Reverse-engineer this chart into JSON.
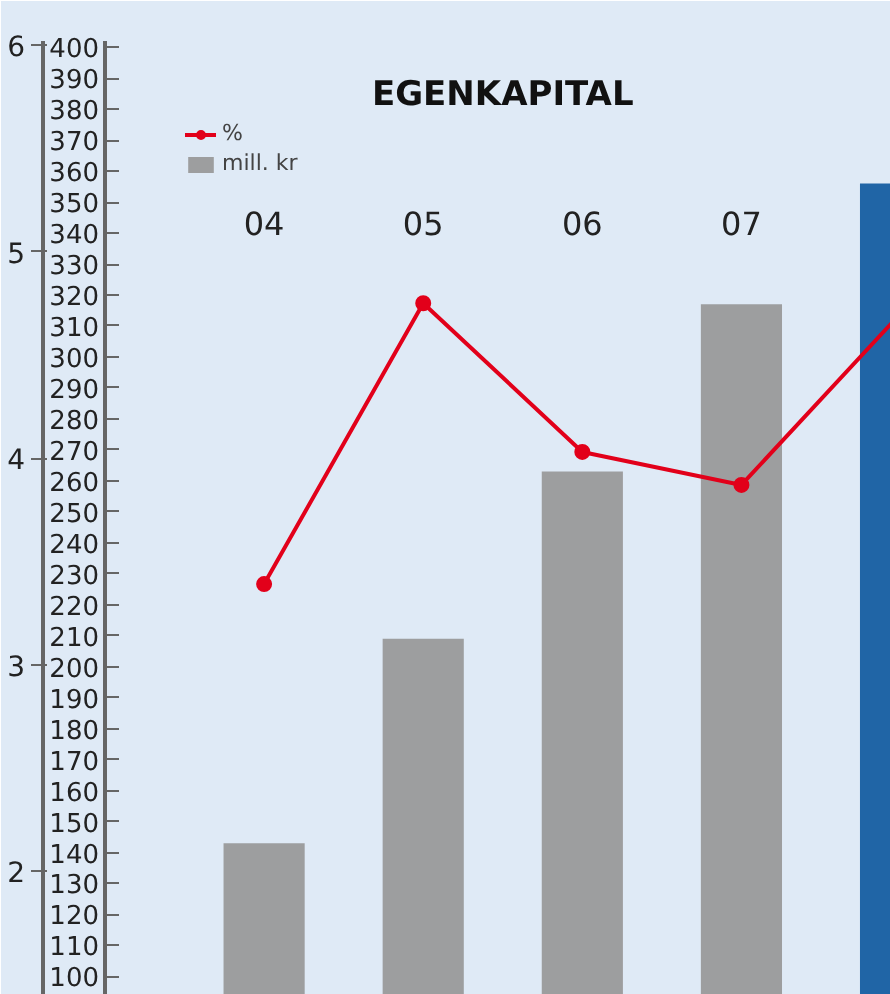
{
  "chart_data": {
    "type": "bar",
    "title": "EGENKAPITAL",
    "categories": [
      "04",
      "05",
      "06",
      "07",
      null
    ],
    "ylim": [
      1.4,
      6.02
    ],
    "yticks": [
      2,
      3,
      4,
      5,
      6
    ],
    "y2lim": [
      94,
      402
    ],
    "y2ticks": [
      100,
      110,
      120,
      130,
      140,
      150,
      160,
      170,
      180,
      190,
      200,
      210,
      220,
      230,
      240,
      250,
      260,
      270,
      280,
      290,
      300,
      310,
      320,
      330,
      340,
      350,
      360,
      370,
      380,
      390,
      400
    ],
    "grid": false,
    "legend": "left",
    "marker": "circle",
    "line_style": "solid",
    "series": [
      {
        "name": "%",
        "type": "line",
        "color": "#e2001a",
        "values": [
          3.39,
          4.75,
          4.03,
          3.87,
          4.7
        ]
      },
      {
        "name": "mill. kr",
        "axis": "y2",
        "colors": [
          "#9d9e9f",
          "#9d9e9f",
          "#9d9e9f",
          "#9d9e9f",
          "#2065a6"
        ],
        "values": [
          143,
          209,
          263,
          317,
          356
        ]
      }
    ]
  }
}
